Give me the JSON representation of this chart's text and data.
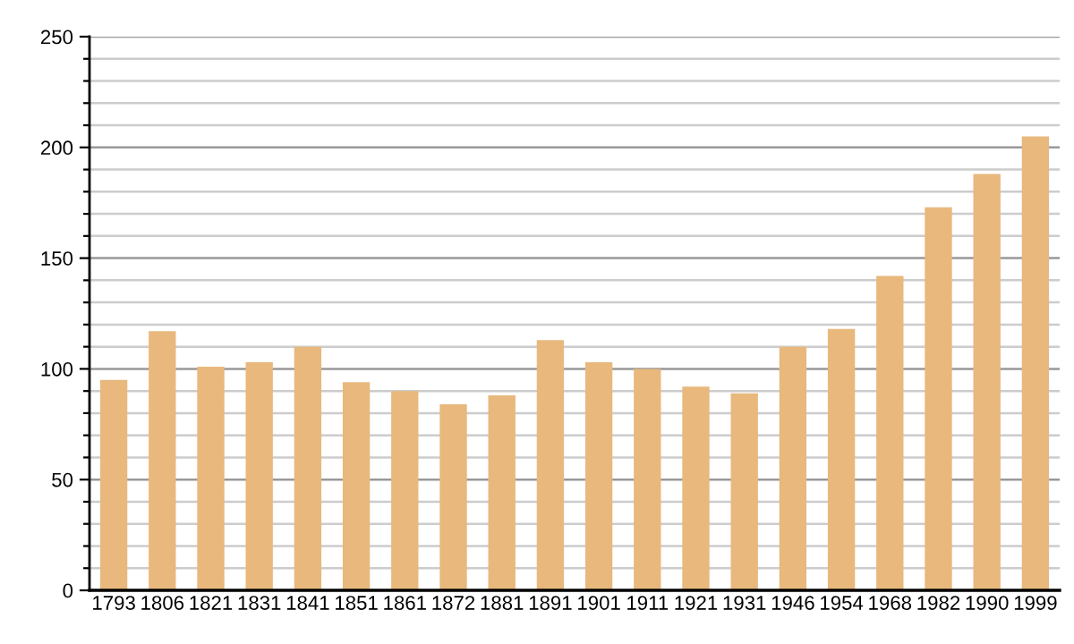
{
  "chart_data": {
    "type": "bar",
    "categories": [
      "1793",
      "1806",
      "1821",
      "1831",
      "1841",
      "1851",
      "1861",
      "1872",
      "1881",
      "1891",
      "1901",
      "1911",
      "1921",
      "1931",
      "1946",
      "1954",
      "1968",
      "1982",
      "1990",
      "1999"
    ],
    "values": [
      95,
      117,
      101,
      103,
      110,
      94,
      90,
      84,
      88,
      113,
      103,
      100,
      92,
      89,
      110,
      118,
      142,
      173,
      188,
      205
    ],
    "color": "#e8b87d",
    "ylim": [
      0,
      250
    ],
    "yticks": [
      0,
      {
        "value": 10,
        "label": null
      },
      {
        "value": 20,
        "label": null
      },
      {
        "value": 30,
        "label": null
      },
      {
        "value": 40,
        "label": null
      },
      50,
      {
        "value": 60,
        "label": null
      },
      {
        "value": 70,
        "label": null
      },
      {
        "value": 80,
        "label": null
      },
      {
        "value": 90,
        "label": null
      },
      100,
      {
        "value": 110,
        "label": null
      },
      {
        "value": 120,
        "label": null
      },
      {
        "value": 130,
        "label": null
      },
      {
        "value": 140,
        "label": null
      },
      150,
      {
        "value": 160,
        "label": null
      },
      {
        "value": 170,
        "label": null
      },
      {
        "value": 180,
        "label": null
      },
      {
        "value": 190,
        "label": null
      },
      200,
      {
        "value": 210,
        "label": null
      },
      {
        "value": 220,
        "label": null
      },
      {
        "value": 230,
        "label": null
      },
      {
        "value": 240,
        "label": null
      },
      250
    ],
    "grid": "y"
  }
}
